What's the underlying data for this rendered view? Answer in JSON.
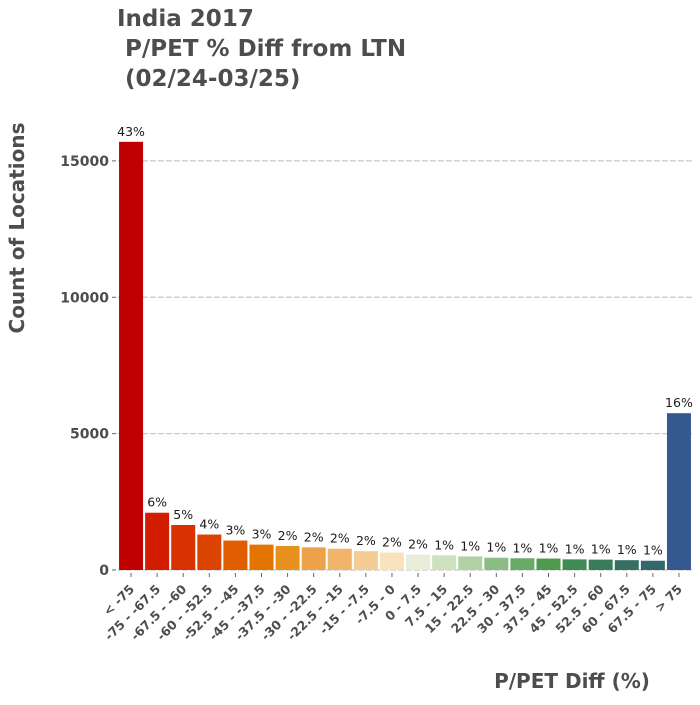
{
  "chart_data": {
    "type": "bar",
    "title": [
      "India 2017",
      " P/PET % Diff from LTN",
      " (02/24-03/25)"
    ],
    "xlabel": "P/PET Diff (%)",
    "ylabel": "Count of Locations",
    "ylim": [
      0,
      16500
    ],
    "yticks": [
      0,
      5000,
      10000,
      15000
    ],
    "grid": "horizontal",
    "categories": [
      "< -75",
      "-75 - -67.5",
      "-67.5 - -60",
      "-60 - -52.5",
      "-52.5 - -45",
      "-45 - -37.5",
      "-37.5 - -30",
      "-30 - -22.5",
      "-22.5 - -15",
      "-15 - -7.5",
      "-7.5 - 0",
      "0 - 7.5",
      "7.5 - 15",
      "15 - 22.5",
      "22.5 - 30",
      "30 - 37.5",
      "37.5 - 45",
      "45 - 52.5",
      "52.5 - 60",
      "60 - 67.5",
      "67.5 - 75",
      "> 75"
    ],
    "values": [
      15700,
      2100,
      1650,
      1300,
      1080,
      930,
      880,
      830,
      780,
      690,
      640,
      570,
      540,
      500,
      450,
      430,
      420,
      390,
      380,
      360,
      340,
      5750
    ],
    "labels": [
      "43%",
      "6%",
      "5%",
      "4%",
      "3%",
      "3%",
      "2%",
      "2%",
      "2%",
      "2%",
      "2%",
      "2%",
      "1%",
      "1%",
      "1%",
      "1%",
      "1%",
      "1%",
      "1%",
      "1%",
      "1%",
      "16%"
    ],
    "colors": [
      "#c00000",
      "#d11c00",
      "#d83200",
      "#db4300",
      "#e05d00",
      "#e37400",
      "#e8911e",
      "#eda24a",
      "#f0b46a",
      "#f5cc93",
      "#fae3bc",
      "#e8edd9",
      "#cde0c0",
      "#b1d1a4",
      "#8cbc85",
      "#6aaa68",
      "#4f9a4f",
      "#3f8b55",
      "#387c5c",
      "#356f62",
      "#32676c",
      "#355891"
    ]
  }
}
